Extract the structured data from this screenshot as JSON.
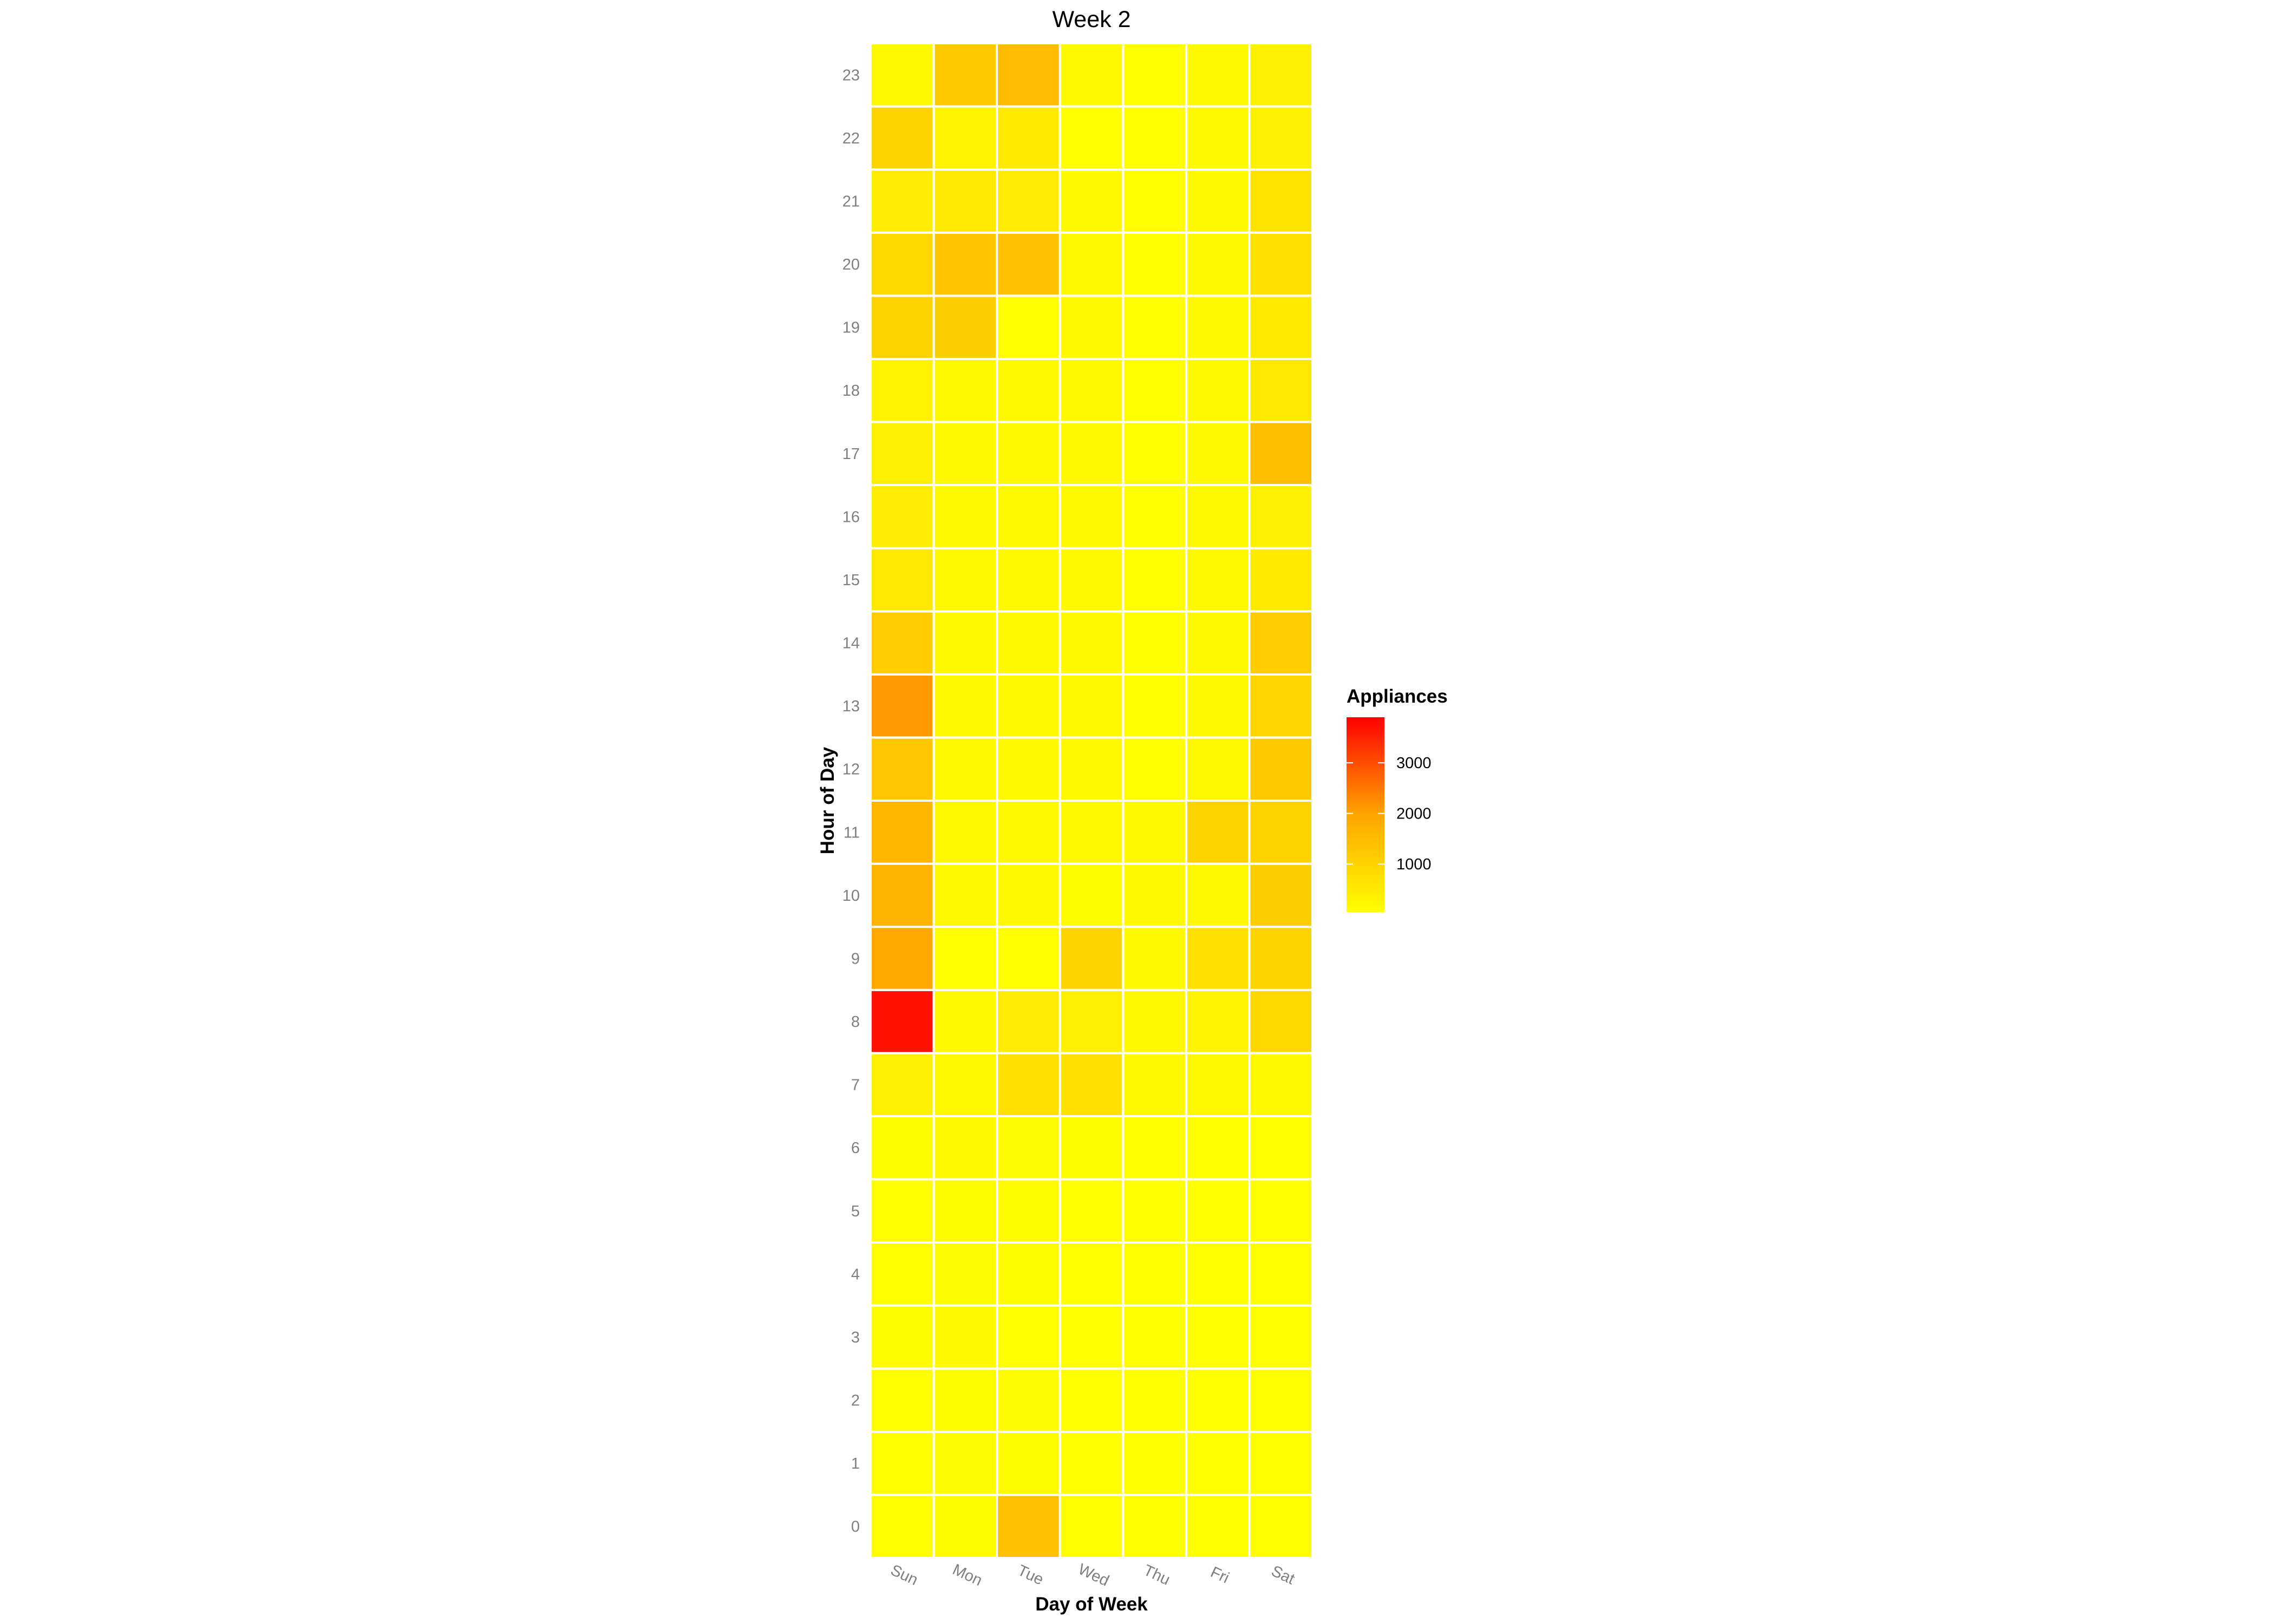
{
  "chart_data": {
    "type": "heatmap",
    "title": "Week 2",
    "xlabel": "Day of Week",
    "ylabel": "Hour of Day",
    "categories": [
      "Sun",
      "Mon",
      "Tue",
      "Wed",
      "Thu",
      "Fri",
      "Sat"
    ],
    "hours": [
      0,
      1,
      2,
      3,
      4,
      5,
      6,
      7,
      8,
      9,
      10,
      11,
      12,
      13,
      14,
      15,
      16,
      17,
      18,
      19,
      20,
      21,
      22,
      23
    ],
    "values_note_order": "rows by hour 0..23, columns Sun..Sat",
    "values": [
      [
        100,
        110,
        1400,
        90,
        60,
        70,
        90
      ],
      [
        90,
        130,
        120,
        80,
        60,
        80,
        100
      ],
      [
        100,
        120,
        130,
        80,
        70,
        80,
        90
      ],
      [
        110,
        150,
        100,
        80,
        60,
        70,
        80
      ],
      [
        100,
        140,
        120,
        90,
        70,
        80,
        90
      ],
      [
        100,
        120,
        110,
        90,
        70,
        80,
        80
      ],
      [
        110,
        150,
        130,
        110,
        90,
        100,
        100
      ],
      [
        400,
        200,
        700,
        700,
        150,
        200,
        150
      ],
      [
        3700,
        200,
        450,
        350,
        200,
        300,
        900
      ],
      [
        1900,
        100,
        100,
        1000,
        150,
        700,
        1000
      ],
      [
        1700,
        250,
        150,
        120,
        150,
        200,
        1100
      ],
      [
        1600,
        200,
        150,
        150,
        150,
        1000,
        1000
      ],
      [
        1250,
        200,
        150,
        150,
        100,
        200,
        1200
      ],
      [
        2100,
        150,
        150,
        150,
        100,
        150,
        950
      ],
      [
        1150,
        150,
        150,
        150,
        100,
        150,
        1150
      ],
      [
        550,
        200,
        150,
        150,
        100,
        200,
        500
      ],
      [
        450,
        200,
        200,
        150,
        100,
        200,
        350
      ],
      [
        400,
        150,
        150,
        150,
        100,
        150,
        1450
      ],
      [
        300,
        150,
        150,
        150,
        100,
        150,
        550
      ],
      [
        1000,
        1100,
        100,
        150,
        100,
        150,
        500
      ],
      [
        900,
        1300,
        1350,
        150,
        100,
        150,
        700
      ],
      [
        450,
        550,
        450,
        150,
        100,
        150,
        650
      ],
      [
        1000,
        300,
        500,
        100,
        100,
        150,
        350
      ],
      [
        150,
        1200,
        1500,
        150,
        100,
        150,
        350
      ]
    ],
    "legend": {
      "title": "Appliances",
      "ticks": [
        1000,
        2000,
        3000
      ],
      "min": 50,
      "max": 3900,
      "colors": {
        "low": "#FFFF00",
        "mid": "#FFA500",
        "high": "#FF0000"
      }
    },
    "grid": false
  }
}
